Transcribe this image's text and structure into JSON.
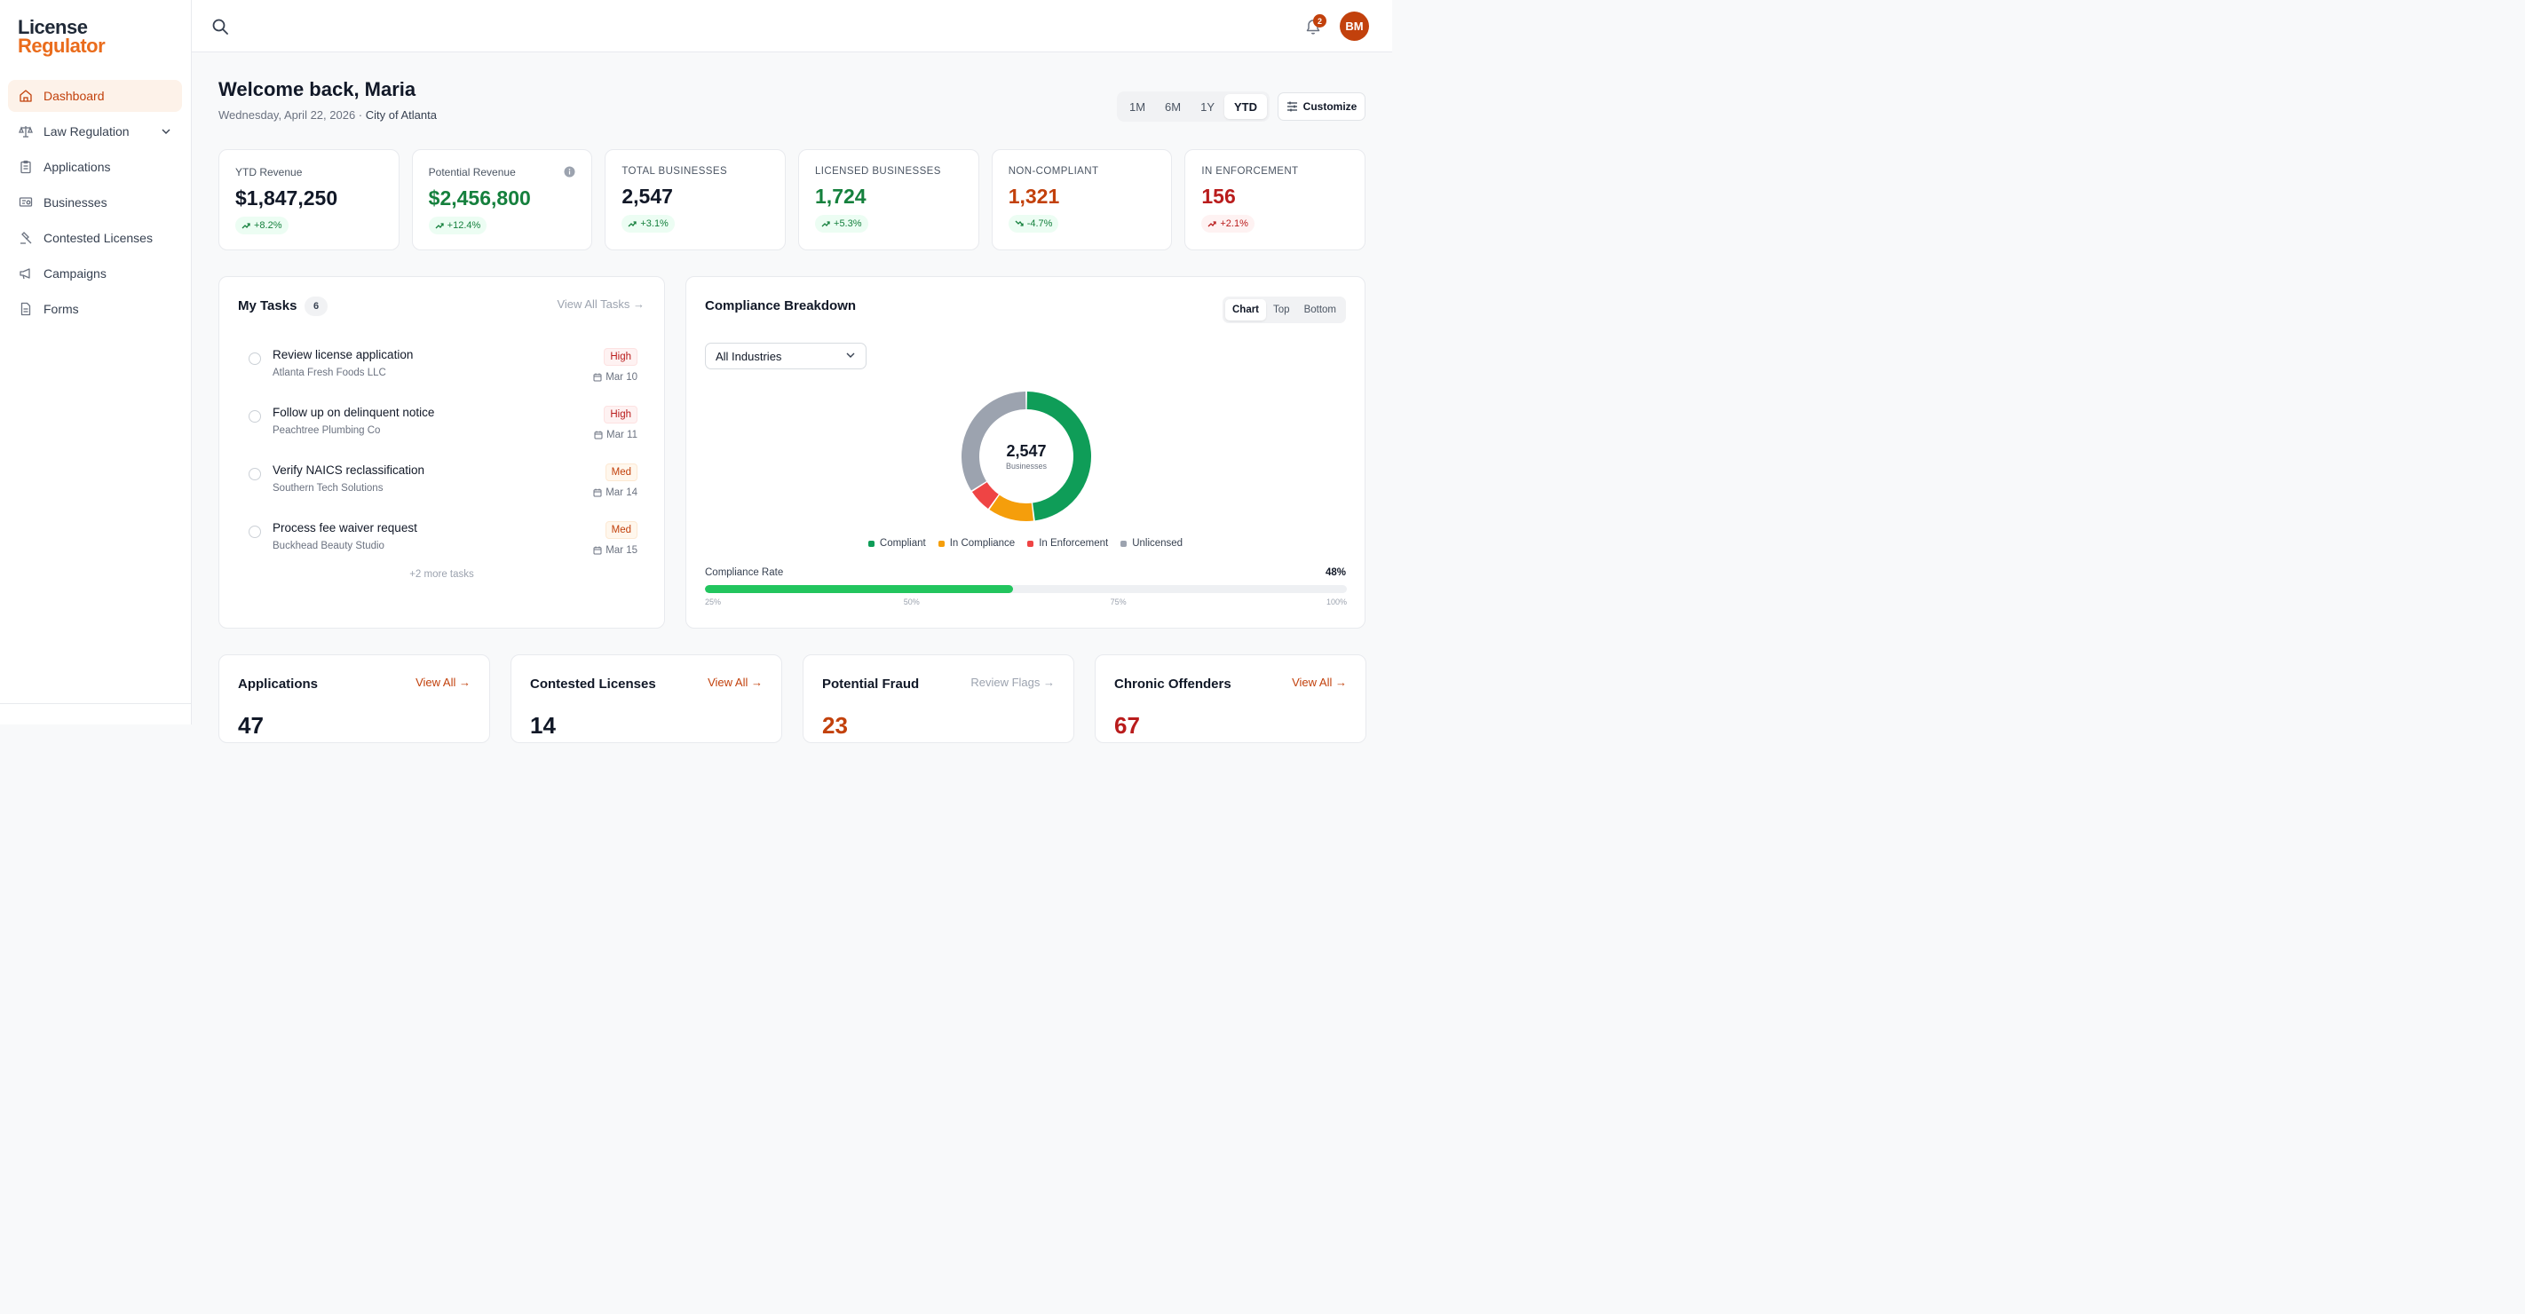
{
  "brand": {
    "line1": "License",
    "line2": "Regulator",
    "accent": "#ea6c1c"
  },
  "sidebar": {
    "items": [
      {
        "label": "Dashboard",
        "icon": "home-icon",
        "active": true
      },
      {
        "label": "Law Regulation",
        "icon": "scale-icon",
        "hasChevron": true
      },
      {
        "label": "Applications",
        "icon": "clipboard-icon"
      },
      {
        "label": "Businesses",
        "icon": "store-icon"
      },
      {
        "label": "Contested Licenses",
        "icon": "gavel-icon"
      },
      {
        "label": "Campaigns",
        "icon": "megaphone-icon"
      },
      {
        "label": "Forms",
        "icon": "document-icon"
      }
    ]
  },
  "topbar": {
    "notification_count": "2",
    "avatar_initials": "BM"
  },
  "header": {
    "greeting": "Welcome back, Maria",
    "date": "Wednesday, April 22, 2026",
    "separator": " · ",
    "city": "City of Atlanta",
    "ranges": [
      "1M",
      "6M",
      "1Y",
      "YTD"
    ],
    "active_range": "YTD",
    "customize_label": "Customize"
  },
  "kpis": [
    {
      "label": "YTD Revenue",
      "value": "$1,847,250",
      "change": "+8.2%",
      "trend": "up",
      "tone": "default",
      "upper": false
    },
    {
      "label": "Potential Revenue",
      "value": "$2,456,800",
      "change": "+12.4%",
      "trend": "up",
      "tone": "green",
      "upper": false,
      "info": true
    },
    {
      "label": "Total Businesses",
      "value": "2,547",
      "change": "+3.1%",
      "trend": "up",
      "tone": "default",
      "upper": true
    },
    {
      "label": "Licensed Businesses",
      "value": "1,724",
      "change": "+5.3%",
      "trend": "up",
      "tone": "green",
      "upper": true
    },
    {
      "label": "Non-Compliant",
      "value": "1,321",
      "change": "-4.7%",
      "trend": "down-good",
      "tone": "orange",
      "upper": true
    },
    {
      "label": "In Enforcement",
      "value": "156",
      "change": "+2.1%",
      "trend": "up-bad",
      "tone": "red",
      "upper": true
    }
  ],
  "tasks": {
    "title": "My Tasks",
    "count": "6",
    "view_all": "View All Tasks →",
    "items": [
      {
        "title": "Review license application",
        "sub": "Atlanta Fresh Foods LLC",
        "priority": "High",
        "level": "high",
        "date": "Mar 10"
      },
      {
        "title": "Follow up on delinquent notice",
        "sub": "Peachtree Plumbing Co",
        "priority": "High",
        "level": "high",
        "date": "Mar 11"
      },
      {
        "title": "Verify NAICS reclassification",
        "sub": "Southern Tech Solutions",
        "priority": "Med",
        "level": "med",
        "date": "Mar 14"
      },
      {
        "title": "Process fee waiver request",
        "sub": "Buckhead Beauty Studio",
        "priority": "Med",
        "level": "med",
        "date": "Mar 15"
      }
    ],
    "more": "+2 more tasks"
  },
  "compliance": {
    "title": "Compliance Breakdown",
    "tabs": [
      "Chart",
      "Top",
      "Bottom"
    ],
    "active_tab": "Chart",
    "industry_select": "All Industries",
    "total": "2,547",
    "total_caption": "Businesses",
    "rate_label": "Compliance Rate",
    "rate_value": "48%",
    "rate_fraction": 0.48,
    "rate_ticks": [
      "25%",
      "50%",
      "75%",
      "100%"
    ]
  },
  "chart_data": {
    "type": "pie",
    "categories": [
      "Compliant",
      "In Compliance",
      "In Enforcement",
      "Unlicensed"
    ],
    "values": [
      1224,
      300,
      156,
      867
    ],
    "colors": [
      "#0f9d58",
      "#f59e0b",
      "#ef4444",
      "#9ca3af"
    ],
    "donut": true,
    "center_label": "2,547",
    "legend": "bottom"
  },
  "bottom_cards": [
    {
      "title": "Applications",
      "link": "View All →",
      "link_tone": "accent",
      "number": "47",
      "tone": "default"
    },
    {
      "title": "Contested Licenses",
      "link": "View All →",
      "link_tone": "accent",
      "number": "14",
      "tone": "default"
    },
    {
      "title": "Potential Fraud",
      "link": "Review Flags →",
      "link_tone": "muted",
      "number": "23",
      "tone": "orange"
    },
    {
      "title": "Chronic Offenders",
      "link": "View All →",
      "link_tone": "accent",
      "number": "67",
      "tone": "red"
    }
  ]
}
